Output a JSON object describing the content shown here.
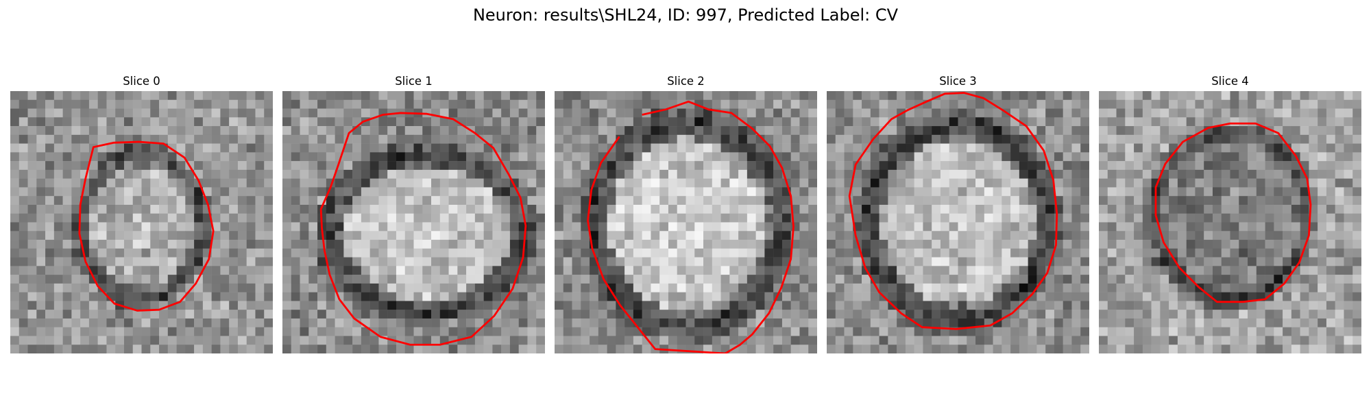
{
  "figure": {
    "title": "Neuron: results\\SHL24, ID: 997, Predicted Label: CV"
  },
  "colors": {
    "background": "#ffffff",
    "contour": "#ff0000",
    "colormap": "gray"
  },
  "panels": [
    {
      "title": "Slice 0"
    },
    {
      "title": "Slice 1"
    },
    {
      "title": "Slice 2"
    },
    {
      "title": "Slice 3"
    },
    {
      "title": "Slice 4"
    }
  ]
}
